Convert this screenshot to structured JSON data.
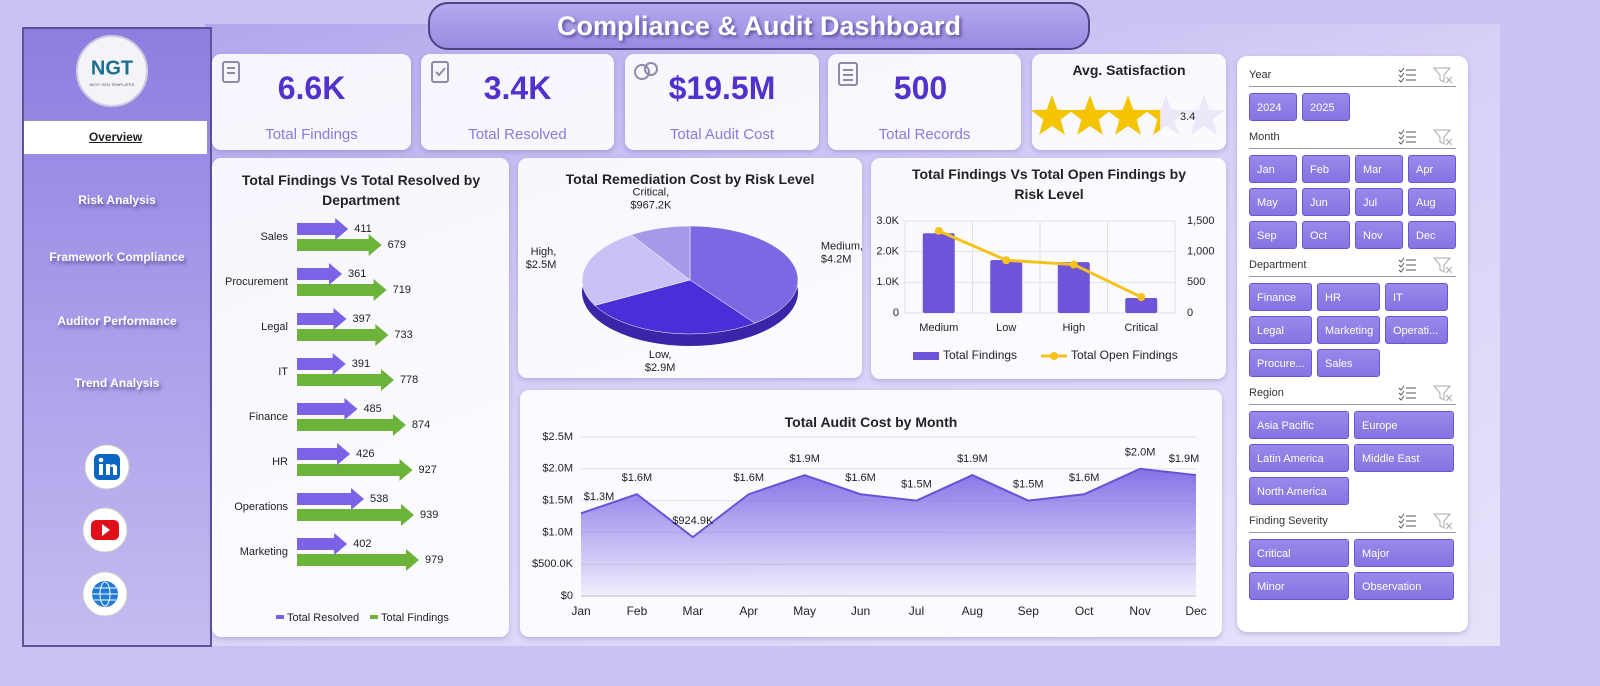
{
  "header": {
    "title": "Compliance & Audit Dashboard"
  },
  "logo": {
    "text": "NGT",
    "tagline": "NEXT GEN TEMPLATES"
  },
  "nav": [
    "Overview",
    "Risk Analysis",
    "Framework Compliance",
    "Auditor Performance",
    "Trend Analysis"
  ],
  "kpis": [
    {
      "value": "6.6K",
      "label": "Total Findings"
    },
    {
      "value": "3.4K",
      "label": "Total Resolved"
    },
    {
      "value": "$19.5M",
      "label": "Total Audit Cost"
    },
    {
      "value": "500",
      "label": "Total Records"
    }
  ],
  "satisfaction": {
    "title": "Avg. Satisfaction",
    "value": 3.4
  },
  "chart_data": [
    {
      "type": "hbar",
      "title": "Total Findings Vs Total Resolved by Department",
      "categories": [
        "Sales",
        "Procurement",
        "Legal",
        "IT",
        "Finance",
        "HR",
        "Operations",
        "Marketing"
      ],
      "series": [
        {
          "name": "Total Resolved",
          "color": "#7b62e6",
          "values": [
            411,
            361,
            397,
            391,
            485,
            426,
            538,
            402
          ]
        },
        {
          "name": "Total Findings",
          "color": "#6cb33a",
          "values": [
            679,
            719,
            733,
            778,
            874,
            927,
            939,
            979
          ]
        }
      ]
    },
    {
      "type": "pie",
      "title": "Total Remediation  Cost by Risk Level",
      "categories": [
        "Medium,",
        "Low,",
        "High,",
        "Critical,"
      ],
      "values": [
        4200000,
        2900000,
        2500000,
        967200
      ],
      "value_labels": [
        "$4.2M",
        "$2.9M",
        "$2.5M",
        "$967.2K"
      ],
      "colors": [
        "#7c68e2",
        "#4a2ed8",
        "#cbc1f6",
        "#a898ea"
      ]
    },
    {
      "type": "combo",
      "title": "Total Findings Vs Total Open Findings by Risk Level",
      "categories": [
        "Medium",
        "Low",
        "High",
        "Critical"
      ],
      "series": [
        {
          "name": "Total Findings",
          "color": "#6e54d8",
          "values": [
            2600,
            1730,
            1660,
            490
          ]
        },
        {
          "name": "Total Open Findings",
          "color": "#f5c21b",
          "axis": "y2",
          "values": [
            1340,
            860,
            790,
            260
          ]
        }
      ],
      "ylim": [
        0,
        3000
      ],
      "yticks": [
        0,
        {
          "value": 1000,
          "label": "1.0K"
        },
        {
          "value": 2000,
          "label": "2.0K"
        },
        {
          "value": 3000,
          "label": "3.0K"
        }
      ],
      "y2lim": [
        0,
        1500
      ],
      "y2ticks": [
        0,
        500,
        {
          "value": 1000,
          "label": "1,000"
        },
        {
          "value": 1500,
          "label": "1,500"
        }
      ],
      "grid": true
    },
    {
      "type": "area",
      "title": "Total Audit Cost by Month",
      "categories": [
        "Jan",
        "Feb",
        "Mar",
        "Apr",
        "May",
        "Jun",
        "Jul",
        "Aug",
        "Sep",
        "Oct",
        "Nov",
        "Dec"
      ],
      "values": [
        1300000,
        1600000,
        924900,
        1600000,
        1900000,
        1600000,
        1500000,
        1900000,
        1500000,
        1600000,
        2000000,
        1900000
      ],
      "value_labels": [
        "$1.3M",
        "$1.6M",
        "$924.9K",
        "$1.6M",
        "$1.9M",
        "$1.6M",
        "$1.5M",
        "$1.9M",
        "$1.5M",
        "$1.6M",
        "$2.0M",
        "$1.9M"
      ],
      "color": "#7a62e4",
      "ylim": [
        0,
        2500000
      ],
      "yticks": [
        {
          "value": 0,
          "label": "$0"
        },
        {
          "value": 500000,
          "label": "$500.0K"
        },
        {
          "value": 1000000,
          "label": "$1.0M"
        },
        {
          "value": 1500000,
          "label": "$1.5M"
        },
        {
          "value": 2000000,
          "label": "$2.0M"
        },
        {
          "value": 2500000,
          "label": "$2.5M"
        }
      ],
      "grid": true
    }
  ],
  "slicers": [
    {
      "title": "Year",
      "items": [
        "2024",
        "2025"
      ]
    },
    {
      "title": "Month",
      "items": [
        "Jan",
        "Feb",
        "Mar",
        "Apr",
        "May",
        "Jun",
        "Jul",
        "Aug",
        "Sep",
        "Oct",
        "Nov",
        "Dec"
      ]
    },
    {
      "title": "Department",
      "items": [
        "Finance",
        "HR",
        "IT",
        "Legal",
        "Marketing",
        "Operati...",
        "Procure...",
        "Sales"
      ]
    },
    {
      "title": "Region",
      "items": [
        "Asia Pacific",
        "Europe",
        "Latin America",
        "Middle East",
        "North America"
      ]
    },
    {
      "title": "Finding Severity",
      "items": [
        "Critical",
        "Major",
        "Minor",
        "Observation"
      ]
    }
  ]
}
